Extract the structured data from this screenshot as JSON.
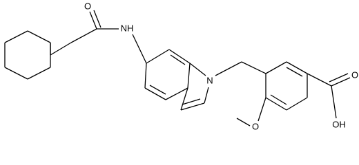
{
  "atoms": {
    "carbonyl_oxygen": "O",
    "amide_nitrogen": "NH",
    "indole_nitrogen": "N",
    "methoxy_oxygen": "O",
    "acid_carbonyl_oxygen": "O",
    "acid_hydroxyl": "OH"
  }
}
